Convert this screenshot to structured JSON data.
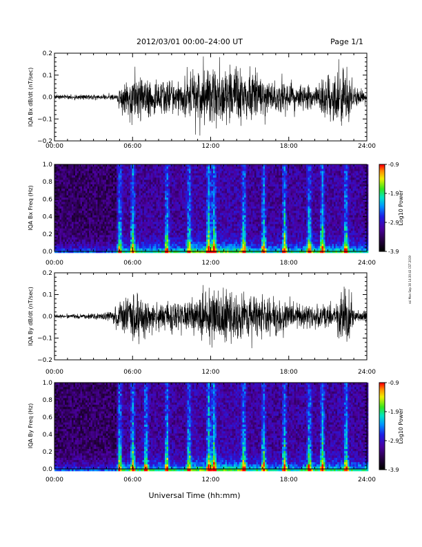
{
  "header": {
    "title": "2012/03/01   00:00–24:00 UT",
    "page": "Page 1/1"
  },
  "footer": {
    "xlabel": "Universal Time (hh:mm)"
  },
  "side_stamp": "ssi Mon Sep 30 14:30:43 CST 2019",
  "x_ticks": [
    "00:00",
    "06:00",
    "12:00",
    "18:00",
    "24:00"
  ],
  "chart_data": [
    {
      "type": "line",
      "ylabel": "IQA Bx dB/dt (nT/sec)",
      "ylim": [
        -0.2,
        0.2
      ],
      "yticks": [
        "0.2",
        "0.1",
        "0.0",
        "−0.1",
        "−0.2"
      ],
      "x_unit": "hours UT",
      "xlim": [
        0,
        24
      ],
      "activity": [
        {
          "t": 0,
          "amp": 0.015
        },
        {
          "t": 4.8,
          "amp": 0.02
        },
        {
          "t": 5.0,
          "amp": 0.09
        },
        {
          "t": 6.5,
          "amp": 0.16
        },
        {
          "t": 8.0,
          "amp": 0.11
        },
        {
          "t": 10.0,
          "amp": 0.13
        },
        {
          "t": 11.0,
          "amp": 0.18
        },
        {
          "t": 12.0,
          "amp": 0.2
        },
        {
          "t": 14.0,
          "amp": 0.19
        },
        {
          "t": 16.0,
          "amp": 0.14
        },
        {
          "t": 18.0,
          "amp": 0.1
        },
        {
          "t": 20.0,
          "amp": 0.08
        },
        {
          "t": 22.0,
          "amp": 0.2
        },
        {
          "t": 22.6,
          "amp": 0.2
        },
        {
          "t": 23.0,
          "amp": 0.06
        },
        {
          "t": 24.0,
          "amp": 0.05
        }
      ]
    },
    {
      "type": "heatmap",
      "ylabel": "IQA Bx Freq (Hz)",
      "ylim": [
        0,
        1.0
      ],
      "yticks": [
        "1.0",
        "0.8",
        "0.6",
        "0.4",
        "0.2",
        "0.0"
      ],
      "xlim": [
        0,
        24
      ],
      "colorbar": {
        "label": "Log10 Power",
        "min": -3.9,
        "max": -0.9,
        "ticks": [
          "-0.9",
          "-1.9",
          "-2.9",
          "-3.9"
        ]
      },
      "bursts_hours": [
        5.0,
        6.0,
        8.6,
        10.3,
        11.8,
        12.2,
        14.5,
        16.0,
        17.6,
        19.5,
        20.5,
        22.3
      ]
    },
    {
      "type": "line",
      "ylabel": "IQA By dB/dt (nT/sec)",
      "ylim": [
        -0.2,
        0.2
      ],
      "yticks": [
        "0.2",
        "0.1",
        "0.0",
        "−0.1",
        "−0.2"
      ],
      "x_unit": "hours UT",
      "xlim": [
        0,
        24
      ],
      "activity": [
        {
          "t": 0,
          "amp": 0.012
        },
        {
          "t": 3.5,
          "amp": 0.02
        },
        {
          "t": 4.5,
          "amp": 0.04
        },
        {
          "t": 5.0,
          "amp": 0.1
        },
        {
          "t": 6.5,
          "amp": 0.17
        },
        {
          "t": 8.0,
          "amp": 0.1
        },
        {
          "t": 10.5,
          "amp": 0.12
        },
        {
          "t": 11.5,
          "amp": 0.2
        },
        {
          "t": 13.0,
          "amp": 0.2
        },
        {
          "t": 15.0,
          "amp": 0.15
        },
        {
          "t": 17.0,
          "amp": 0.12
        },
        {
          "t": 19.0,
          "amp": 0.08
        },
        {
          "t": 21.5,
          "amp": 0.08
        },
        {
          "t": 22.0,
          "amp": 0.2
        },
        {
          "t": 22.6,
          "amp": 0.2
        },
        {
          "t": 23.0,
          "amp": 0.05
        },
        {
          "t": 24.0,
          "amp": 0.04
        }
      ]
    },
    {
      "type": "heatmap",
      "ylabel": "IQA By Freq (Hz)",
      "ylim": [
        0,
        1.0
      ],
      "yticks": [
        "1.0",
        "0.8",
        "0.6",
        "0.4",
        "0.2",
        "0.0"
      ],
      "xlim": [
        0,
        24
      ],
      "colorbar": {
        "label": "Log10 Power",
        "min": -3.9,
        "max": -0.9,
        "ticks": [
          "-0.9",
          "-1.9",
          "-2.9",
          "-3.9"
        ]
      },
      "bursts_hours": [
        5.0,
        6.0,
        7.0,
        8.6,
        10.3,
        11.8,
        12.2,
        14.5,
        16.0,
        17.6,
        19.5,
        20.5,
        22.3
      ]
    }
  ]
}
